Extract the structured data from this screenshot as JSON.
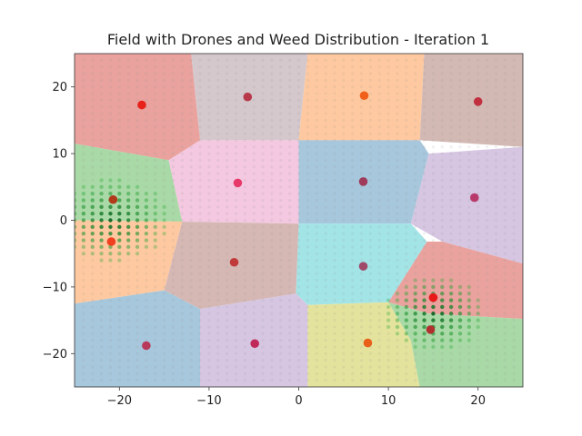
{
  "chart_data": {
    "type": "scatter",
    "title": "Field with Drones and Weed Distribution - Iteration 1",
    "xlabel": "",
    "ylabel": "",
    "xlim": [
      -25,
      25
    ],
    "ylim": [
      -25,
      25
    ],
    "x_ticks": [
      -20,
      -10,
      0,
      10,
      20
    ],
    "y_ticks": [
      -20,
      -10,
      0,
      10,
      20
    ],
    "x_tick_labels": [
      "−20",
      "−10",
      "0",
      "10",
      "20"
    ],
    "y_tick_labels": [
      "−20",
      "−10",
      "0",
      "10",
      "20"
    ],
    "grid": false,
    "legend": "none",
    "drones": [
      {
        "x": -17.5,
        "y": 17.3,
        "color": "#e8221a"
      },
      {
        "x": -5.7,
        "y": 18.5,
        "color": "#b83a4a"
      },
      {
        "x": 7.3,
        "y": 18.7,
        "color": "#f0601a"
      },
      {
        "x": 20.0,
        "y": 17.8,
        "color": "#c03040"
      },
      {
        "x": -6.8,
        "y": 5.6,
        "color": "#e83a6a"
      },
      {
        "x": 7.2,
        "y": 5.8,
        "color": "#a03a5a"
      },
      {
        "x": 19.6,
        "y": 3.4,
        "color": "#b83a6a"
      },
      {
        "x": -20.7,
        "y": 3.1,
        "color": "#b03a1a"
      },
      {
        "x": -20.9,
        "y": -3.2,
        "color": "#f04020"
      },
      {
        "x": -7.2,
        "y": -6.3,
        "color": "#c03a3a"
      },
      {
        "x": 7.2,
        "y": -6.9,
        "color": "#a04a6a"
      },
      {
        "x": 15.0,
        "y": -11.6,
        "color": "#e81a1a"
      },
      {
        "x": 14.7,
        "y": -16.4,
        "color": "#b03030"
      },
      {
        "x": -17.0,
        "y": -18.8,
        "color": "#b83a5a"
      },
      {
        "x": -4.9,
        "y": -18.5,
        "color": "#c02a5a"
      },
      {
        "x": 7.7,
        "y": -18.4,
        "color": "#e8601a"
      }
    ],
    "weed_clusters": [
      {
        "center_x": -20.8,
        "center_y": 0.0,
        "spread": 5
      },
      {
        "center_x": 15.2,
        "center_y": -14.0,
        "spread": 4.5
      }
    ],
    "regions_colors": [
      "#e9a29e",
      "#d4c8cc",
      "#fec9a0",
      "#d3b9b4",
      "#a9d9a6",
      "#f3c8e0",
      "#a7c7dc",
      "#d6c6e2",
      "#fec9a0",
      "#d5b8b4",
      "#a3e4e6",
      "#e9a29e",
      "#a7c7dc",
      "#d6c6e2",
      "#e4e39d",
      "#a9d9a6"
    ],
    "background_dot_color": "#8f8f8f"
  }
}
